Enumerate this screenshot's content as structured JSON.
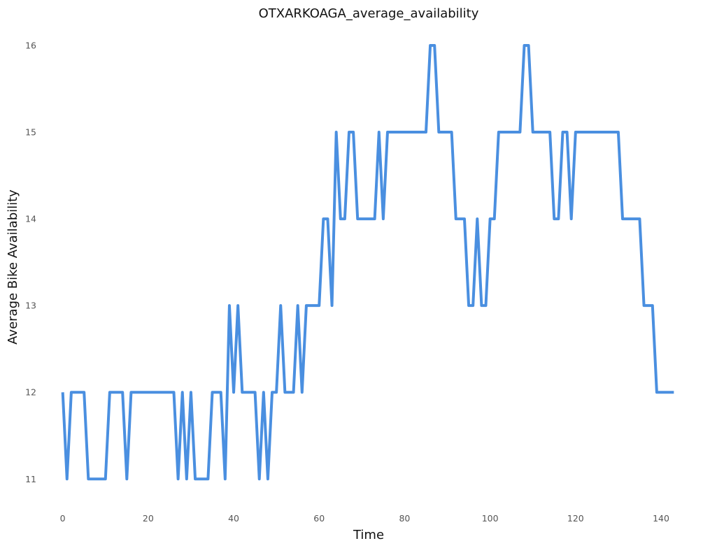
{
  "chart_data": {
    "type": "line",
    "title": "OTXARKOAGA_average_availability",
    "xlabel": "Time",
    "ylabel": "Average Bike Availability",
    "xlim": [
      -2.4,
      145.4
    ],
    "ylim": [
      10.72,
      16.25
    ],
    "xticks": [
      0,
      20,
      40,
      60,
      80,
      100,
      120,
      140
    ],
    "yticks": [
      11,
      12,
      13,
      14,
      15,
      16
    ],
    "grid": false,
    "legend": "none",
    "series": [
      {
        "color": "#4a8fe0",
        "x": [
          0,
          1,
          2,
          3,
          4,
          5,
          6,
          7,
          8,
          9,
          10,
          11,
          12,
          13,
          14,
          15,
          16,
          17,
          18,
          19,
          20,
          21,
          22,
          23,
          24,
          25,
          26,
          27,
          28,
          29,
          30,
          31,
          32,
          33,
          34,
          35,
          36,
          37,
          38,
          39,
          40,
          41,
          42,
          43,
          44,
          45,
          46,
          47,
          48,
          49,
          50,
          51,
          52,
          53,
          54,
          55,
          56,
          57,
          58,
          59,
          60,
          61,
          62,
          63,
          64,
          65,
          66,
          67,
          68,
          69,
          70,
          71,
          72,
          73,
          74,
          75,
          76,
          77,
          78,
          79,
          80,
          81,
          82,
          83,
          84,
          85,
          86,
          87,
          88,
          89,
          90,
          91,
          92,
          93,
          94,
          95,
          96,
          97,
          98,
          99,
          100,
          101,
          102,
          103,
          104,
          105,
          106,
          107,
          108,
          109,
          110,
          111,
          112,
          113,
          114,
          115,
          116,
          117,
          118,
          119,
          120,
          121,
          122,
          123,
          124,
          125,
          126,
          127,
          128,
          129,
          130,
          131,
          132,
          133,
          134,
          135,
          136,
          137,
          138,
          139,
          140,
          141,
          142,
          143
        ],
        "values": [
          12,
          11,
          12,
          12,
          12,
          12,
          11,
          11,
          11,
          11,
          11,
          12,
          12,
          12,
          12,
          11,
          12,
          12,
          12,
          12,
          12,
          12,
          12,
          12,
          12,
          12,
          12,
          11,
          12,
          11,
          12,
          11,
          11,
          11,
          11,
          12,
          12,
          12,
          11,
          13,
          12,
          13,
          12,
          12,
          12,
          12,
          11,
          12,
          11,
          12,
          12,
          13,
          12,
          12,
          12,
          13,
          12,
          13,
          13,
          13,
          13,
          14,
          14,
          13,
          15,
          14,
          14,
          15,
          15,
          14,
          14,
          14,
          14,
          14,
          15,
          14,
          15,
          15,
          15,
          15,
          15,
          15,
          15,
          15,
          15,
          15,
          16,
          16,
          15,
          15,
          15,
          15,
          14,
          14,
          14,
          13,
          13,
          14,
          13,
          13,
          14,
          14,
          15,
          15,
          15,
          15,
          15,
          15,
          16,
          16,
          15,
          15,
          15,
          15,
          15,
          14,
          14,
          15,
          15,
          14,
          15,
          15,
          15,
          15,
          15,
          15,
          15,
          15,
          15,
          15,
          15,
          14,
          14,
          14,
          14,
          14,
          13,
          13,
          13,
          12,
          12,
          12,
          12,
          12
        ]
      }
    ]
  }
}
